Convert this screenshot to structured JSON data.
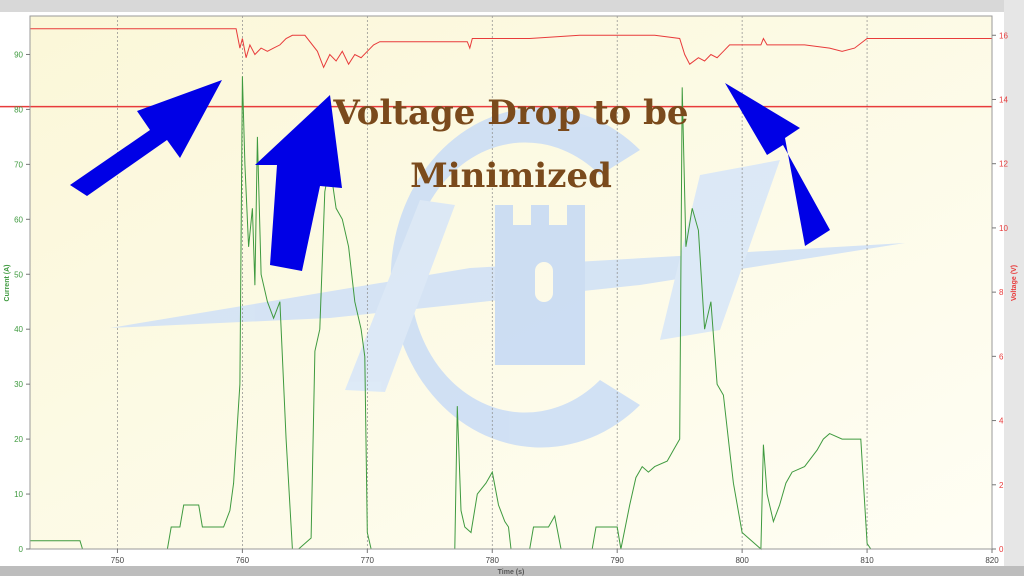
{
  "chart_data": {
    "type": "line",
    "title": "",
    "xlabel": "Time (s)",
    "ylabel_left": "Current (A)",
    "ylabel_right": "Voltage (V)",
    "xlim": [
      743,
      820
    ],
    "ylim_left": [
      0,
      97
    ],
    "ylim_right": [
      0,
      16.6
    ],
    "x_ticks": [
      "750",
      "760",
      "770",
      "780",
      "790",
      "800",
      "810",
      "820"
    ],
    "y_left_ticks": [
      "0",
      "10",
      "20",
      "30",
      "40",
      "50",
      "60",
      "70",
      "80",
      "90"
    ],
    "y_right_ticks": [
      "0",
      "2",
      "4",
      "6",
      "8",
      "10",
      "12",
      "14",
      "16"
    ],
    "grid": "vertical dotted",
    "reference_line": {
      "axis": "left",
      "value": 80.5,
      "color": "#e83b3b"
    },
    "series": [
      {
        "axis": "right",
        "color": "#e83b3b",
        "x": [
          743,
          759.5,
          759.8,
          760.0,
          760.3,
          760.6,
          761.0,
          761.5,
          762.0,
          762.5,
          763.0,
          763.5,
          764.0,
          765.0,
          766.0,
          766.5,
          767.0,
          767.5,
          768.0,
          768.5,
          769.0,
          769.5,
          770.0,
          770.5,
          771.0,
          775.0,
          778.0,
          778.2,
          778.4,
          780.0,
          783.0,
          787.0,
          790.0,
          793.0,
          795.0,
          795.4,
          795.8,
          796.5,
          797.0,
          797.5,
          798.0,
          798.5,
          799.0,
          800.0,
          801.5,
          801.7,
          802.0,
          805.0,
          807.0,
          808.0,
          809.0,
          810.0,
          815.0,
          820.0
        ],
        "y": [
          16.2,
          16.2,
          15.6,
          15.9,
          15.3,
          15.7,
          15.4,
          15.6,
          15.5,
          15.6,
          15.7,
          15.9,
          16.0,
          16.0,
          15.5,
          15.0,
          15.4,
          15.2,
          15.5,
          15.1,
          15.4,
          15.3,
          15.5,
          15.7,
          15.8,
          15.8,
          15.8,
          15.6,
          15.9,
          15.9,
          15.9,
          16.0,
          16.0,
          16.0,
          15.9,
          15.4,
          15.1,
          15.3,
          15.2,
          15.4,
          15.3,
          15.5,
          15.7,
          15.7,
          15.7,
          15.9,
          15.7,
          15.7,
          15.6,
          15.5,
          15.6,
          15.9,
          15.9,
          15.9
        ]
      },
      {
        "axis": "left",
        "color": "#3f9a3f",
        "x": [
          743,
          747,
          747.2,
          754,
          754.3,
          755,
          755.3,
          756.5,
          756.8,
          758.5,
          759.0,
          759.3,
          759.8,
          760.0,
          760.2,
          760.5,
          760.8,
          761.0,
          761.2,
          761.5,
          762.0,
          762.5,
          763.0,
          763.5,
          764.0,
          764.5,
          765.5,
          765.8,
          766.2,
          766.6,
          767.0,
          767.5,
          768.0,
          768.5,
          769.0,
          769.5,
          769.8,
          770.0,
          770.3,
          777.0,
          777.2,
          777.5,
          777.8,
          778.3,
          778.8,
          779.5,
          780.0,
          780.5,
          781.0,
          781.3,
          781.5,
          783.0,
          783.3,
          784.5,
          785.0,
          785.5,
          787.0,
          788.0,
          788.3,
          790.0,
          790.3,
          791.0,
          791.5,
          792.0,
          792.5,
          793.0,
          794.0,
          794.5,
          795.0,
          795.2,
          795.5,
          796.0,
          796.5,
          797.0,
          797.5,
          798.0,
          798.5,
          799.0,
          799.3,
          800.0,
          801.5,
          801.7,
          802.0,
          802.5,
          803.0,
          803.5,
          804.0,
          805.0,
          806.0,
          806.5,
          807.0,
          808.0,
          809.5,
          810.0,
          810.3,
          820.0
        ],
        "y": [
          1.5,
          1.5,
          0,
          0,
          4,
          4,
          8,
          8,
          4,
          4,
          7,
          12,
          30,
          86,
          70,
          55,
          62,
          48,
          75,
          50,
          45,
          42,
          45,
          20,
          0,
          0,
          2,
          36,
          40,
          65,
          70,
          62,
          60,
          55,
          45,
          40,
          35,
          3,
          0,
          0,
          26,
          7,
          4,
          3,
          10,
          12,
          14,
          8,
          5,
          4,
          0,
          0,
          4,
          4,
          6,
          0,
          0,
          0,
          4,
          4,
          0,
          8,
          13,
          15,
          14,
          15,
          16,
          18,
          20,
          84,
          55,
          62,
          58,
          40,
          45,
          30,
          28,
          18,
          12,
          3,
          0,
          19,
          10,
          5,
          8,
          12,
          14,
          15,
          18,
          20,
          21,
          20,
          20,
          1,
          0,
          0
        ]
      }
    ],
    "annotation": {
      "line1": "Voltage Drop to be",
      "line2": "Minimized"
    },
    "arrow_color": "#0000e6"
  }
}
